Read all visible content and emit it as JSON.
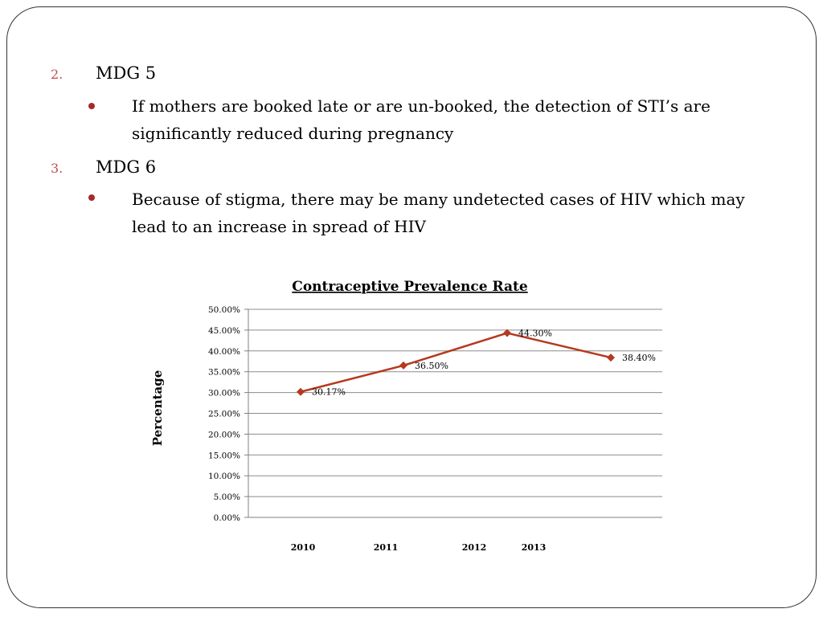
{
  "slide": {
    "items": [
      {
        "number": "2.",
        "heading": "MDG 5",
        "bullet": "If mothers are booked late or are un-booked, the detection of STI’s are significantly reduced during pregnancy"
      },
      {
        "number": "3.",
        "heading": "MDG 6",
        "bullet": "Because of stigma, there may be many undetected cases of HIV which may lead to an increase in spread of HIV"
      }
    ]
  },
  "chart_data": {
    "type": "line",
    "title": "Contraceptive Prevalence Rate",
    "xlabel": "",
    "ylabel": "Percentage",
    "categories": [
      "2010",
      "2011",
      "2012",
      "2013"
    ],
    "values": [
      30.17,
      36.5,
      44.3,
      38.4
    ],
    "data_labels": [
      "30.17%",
      "36.50%",
      "44.30%",
      "38.40%"
    ],
    "y_ticks": [
      "0.00%",
      "5.00%",
      "10.00%",
      "15.00%",
      "20.00%",
      "25.00%",
      "30.00%",
      "35.00%",
      "40.00%",
      "45.00%",
      "50.00%"
    ],
    "ylim": [
      0,
      50
    ],
    "grid": true,
    "legend": "none",
    "series_color": "#b5391e",
    "title_underlined": true
  }
}
